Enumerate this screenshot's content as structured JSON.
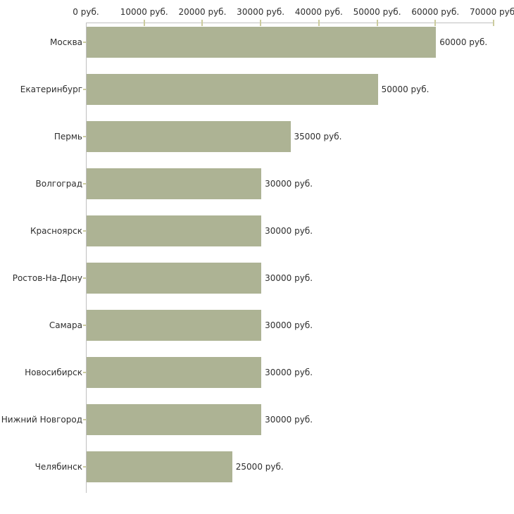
{
  "chart_data": {
    "type": "bar",
    "orientation": "horizontal",
    "title": "",
    "xlabel": "",
    "ylabel": "",
    "categories": [
      "Москва",
      "Екатеринбург",
      "Пермь",
      "Волгоград",
      "Красноярск",
      "Ростов-На-Дону",
      "Самара",
      "Новосибирск",
      "Нижний Новгород",
      "Челябинск"
    ],
    "values": [
      60000,
      50000,
      35000,
      30000,
      30000,
      30000,
      30000,
      30000,
      30000,
      25000
    ],
    "bar_labels": [
      "60000 руб.",
      "50000 руб.",
      "35000 руб.",
      "30000 руб.",
      "30000 руб.",
      "30000 руб.",
      "30000 руб.",
      "30000 руб.",
      "30000 руб.",
      "25000 руб."
    ],
    "x_tick_values": [
      0,
      10000,
      20000,
      30000,
      40000,
      50000,
      60000,
      70000
    ],
    "x_tick_labels": [
      "0 руб.",
      "10000 руб.",
      "20000 руб.",
      "30000 руб.",
      "40000 руб.",
      "50000 руб.",
      "60000 руб.",
      "70000 руб."
    ],
    "xlim": [
      0,
      70000
    ],
    "grid": false,
    "legend": "none"
  },
  "colors": {
    "bar": "#adb394",
    "axis_line": "#c0c0c0",
    "tick_mark": "#cccc9e",
    "text": "#2e2e2e",
    "background": "#ffffff"
  }
}
